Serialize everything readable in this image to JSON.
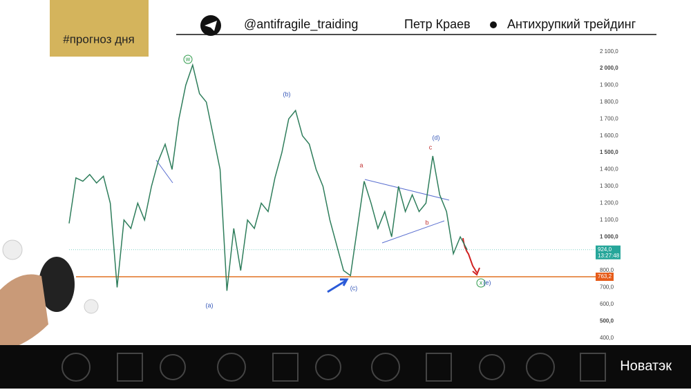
{
  "header": {
    "tag": "#прогноз дня",
    "handle": "@antifragile_traiding",
    "author": "Петр Краев",
    "brand": "Антихрупкий трейдинг"
  },
  "footer": {
    "ticker_name": "Новатэк"
  },
  "chart_data": {
    "type": "line",
    "color": "#2e7d5b",
    "categories": [
      null,
      null,
      null,
      null,
      null,
      null,
      null,
      null,
      null,
      null,
      null,
      null,
      null,
      null,
      null,
      null,
      null,
      null,
      null,
      null,
      null,
      null,
      null,
      null,
      null,
      null,
      null,
      null,
      null,
      null,
      null,
      null,
      null,
      null,
      null,
      null,
      null,
      null,
      null,
      null,
      null,
      null,
      null,
      null,
      null,
      null,
      null,
      null,
      null,
      null,
      null,
      null,
      null,
      null,
      null,
      null,
      null,
      null,
      null
    ],
    "values": [
      1080,
      1350,
      1330,
      1370,
      1320,
      1360,
      1200,
      700,
      1100,
      1050,
      1200,
      1100,
      1300,
      1450,
      1550,
      1400,
      1700,
      1900,
      2020,
      1850,
      1800,
      1600,
      1400,
      680,
      1050,
      800,
      1100,
      1050,
      1200,
      1150,
      1350,
      1500,
      1700,
      1750,
      1600,
      1550,
      1400,
      1300,
      1100,
      950,
      800,
      770,
      1050,
      1330,
      1200,
      1050,
      1150,
      1000,
      1300,
      1150,
      1250,
      1150,
      1200,
      1480,
      1250,
      1150,
      900,
      1000,
      924
    ],
    "ylim": [
      370,
      2160
    ],
    "yticks": [
      {
        "value": 2100,
        "label": "2 100,0"
      },
      {
        "value": 2000,
        "label": "2 000,0"
      },
      {
        "value": 1900,
        "label": "1 900,0"
      },
      {
        "value": 1800,
        "label": "1 800,0"
      },
      {
        "value": 1700,
        "label": "1 700,0"
      },
      {
        "value": 1600,
        "label": "1 600,0"
      },
      {
        "value": 1500,
        "label": "1 500,0"
      },
      {
        "value": 1400,
        "label": "1 400,0"
      },
      {
        "value": 1300,
        "label": "1 300,0"
      },
      {
        "value": 1200,
        "label": "1 200,0"
      },
      {
        "value": 1100,
        "label": "1 100,0"
      },
      {
        "value": 1000,
        "label": "1 000,0"
      },
      {
        "value": 800,
        "label": "800,0"
      },
      {
        "value": 700,
        "label": "700,0"
      },
      {
        "value": 600,
        "label": "600,0"
      },
      {
        "value": 500,
        "label": "500,0"
      },
      {
        "value": 400,
        "label": "400,0"
      }
    ],
    "last_price": {
      "value": 924,
      "label": "924,0",
      "time": "13:27:48"
    },
    "level": {
      "value": 763.2,
      "label": "763,2"
    },
    "annotations": [
      "w",
      "(b)",
      "a",
      "c",
      "(d)",
      "b",
      "(a)",
      "(c)",
      "x",
      "(e)"
    ]
  }
}
